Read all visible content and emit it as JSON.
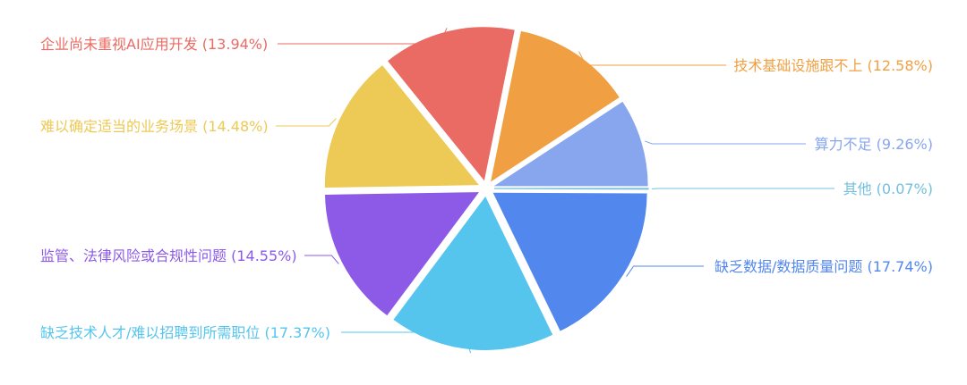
{
  "chart_data": {
    "type": "pie",
    "slices": [
      {
        "label": "其他",
        "percent": 0.07,
        "color": "#73C0DE"
      },
      {
        "label": "缺乏数据/数据质量问题",
        "percent": 17.74,
        "color": "#5287EE"
      },
      {
        "label": "缺乏技术人才/难以招聘到所需职位",
        "percent": 17.37,
        "color": "#55C5EE"
      },
      {
        "label": "监管、法律风险或合规性问题",
        "percent": 14.55,
        "color": "#8D5AE8"
      },
      {
        "label": "难以确定适当的业务场景",
        "percent": 14.48,
        "color": "#EDC955"
      },
      {
        "label": "企业尚未重视AI应用开发",
        "percent": 13.94,
        "color": "#E96B63"
      },
      {
        "label": "技术基础设施跟不上",
        "percent": 12.58,
        "color": "#F0A042"
      },
      {
        "label": "算力不足",
        "percent": 9.26,
        "color": "#87A6EE"
      }
    ]
  }
}
